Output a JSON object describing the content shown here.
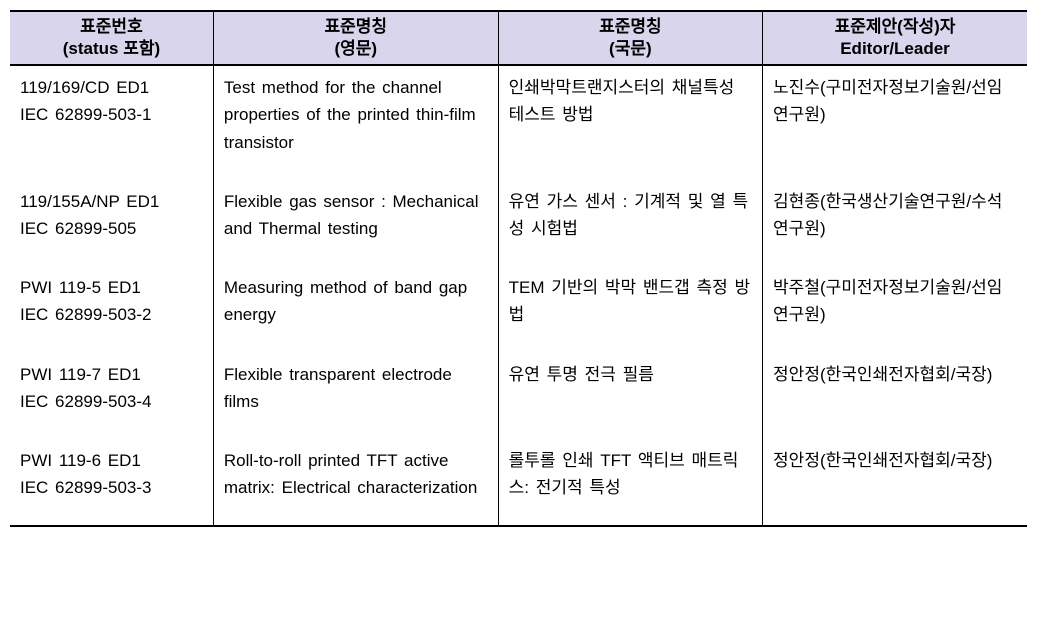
{
  "table": {
    "background_header": "#d9d5ec",
    "border_color": "#000000",
    "font_size": 17,
    "headers": [
      {
        "line1": "표준번호",
        "line2": "(status 포함)"
      },
      {
        "line1": "표준명칭",
        "line2": "(영문)"
      },
      {
        "line1": "표준명칭",
        "line2": "(국문)"
      },
      {
        "line1": "표준제안(작성)자",
        "line2": "Editor/Leader"
      }
    ],
    "rows": [
      {
        "std_no": {
          "line1": "119/169/CD ED1",
          "line2": "IEC 62899-503-1"
        },
        "name_en": "Test method for the channel properties of the printed thin-film transistor",
        "name_ko": "인쇄박막트랜지스터의 채널특성 테스트 방법",
        "editor": "노진수(구미전자정보기술원/선임연구원)"
      },
      {
        "std_no": {
          "line1": "119/155A/NP ED1",
          "line2": "IEC 62899-505"
        },
        "name_en": "Flexible gas sensor : Mechanical and Thermal testing",
        "name_ko": "유연 가스 센서 : 기계적 및 열 특성 시험법",
        "editor": "김현종(한국생산기술연구원/수석연구원)"
      },
      {
        "std_no": {
          "line1": "PWI 119-5 ED1",
          "line2": "IEC 62899-503-2"
        },
        "name_en": "Measuring method of band gap energy",
        "name_ko": "TEM 기반의 박막 밴드갭 측정 방법",
        "editor": "박주철(구미전자정보기술원/선임연구원)"
      },
      {
        "std_no": {
          "line1": "PWI 119-7 ED1",
          "line2": "IEC 62899-503-4"
        },
        "name_en": "Flexible transparent electrode films",
        "name_ko": "유연 투명 전극 필름",
        "editor": "정안정(한국인쇄전자협회/국장)"
      },
      {
        "std_no": {
          "line1": "PWI 119-6 ED1",
          "line2": "IEC 62899-503-3"
        },
        "name_en": "Roll-to-roll printed TFT active matrix: Electrical characterization",
        "name_ko": "롤투롤 인쇄 TFT 액티브 매트릭스: 전기적 특성",
        "editor": "정안정(한국인쇄전자협회/국장)"
      }
    ]
  }
}
